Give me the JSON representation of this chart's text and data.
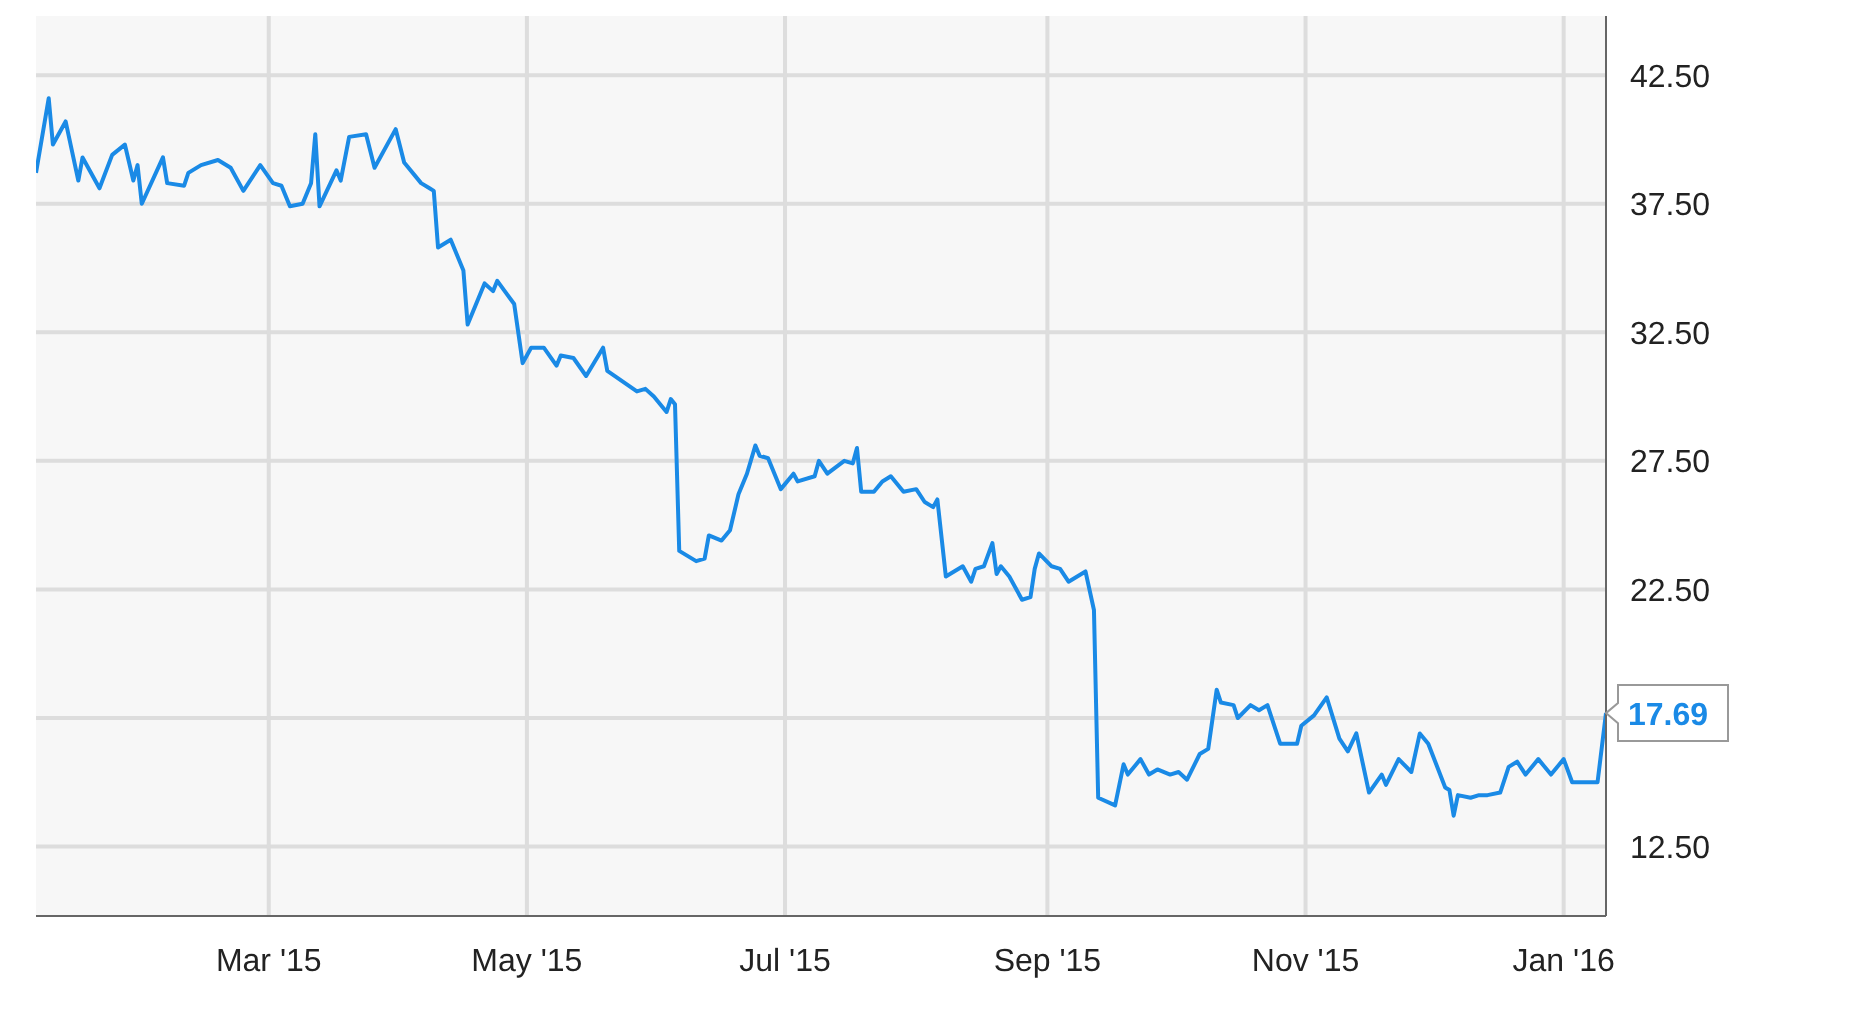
{
  "chart_data": {
    "type": "line",
    "color": "#1a8ae6",
    "grid": true,
    "marker": "none",
    "line_style": "solid",
    "xlim": [
      "2015-01-05",
      "2016-01-11"
    ],
    "xticks": [
      {
        "value": "2015-03-01",
        "label": "Mar '15"
      },
      {
        "value": "2015-05-01",
        "label": "May '15"
      },
      {
        "value": "2015-07-01",
        "label": "Jul '15"
      },
      {
        "value": "2015-09-01",
        "label": "Sep '15"
      },
      {
        "value": "2015-11-01",
        "label": "Nov '15"
      },
      {
        "value": "2016-01-01",
        "label": "Jan '16"
      }
    ],
    "ylim": [
      9.8,
      44.8
    ],
    "yticks": [
      {
        "value": 12.5,
        "label": "12.50"
      },
      {
        "value": 17.5,
        "label": null
      },
      {
        "value": 22.5,
        "label": "22.50"
      },
      {
        "value": 27.5,
        "label": "27.50"
      },
      {
        "value": 32.5,
        "label": "32.50"
      },
      {
        "value": 37.5,
        "label": "37.50"
      },
      {
        "value": 42.5,
        "label": "42.50"
      }
    ],
    "annotations": [
      {
        "text": "17.69",
        "x": "2016-01-11",
        "y": 17.69
      }
    ],
    "x": [
      "2015-01-05",
      "2015-01-08",
      "2015-01-09",
      "2015-01-12",
      "2015-01-15",
      "2015-01-16",
      "2015-01-20",
      "2015-01-23",
      "2015-01-26",
      "2015-01-28",
      "2015-01-29",
      "2015-01-30",
      "2015-02-04",
      "2015-02-05",
      "2015-02-09",
      "2015-02-10",
      "2015-02-13",
      "2015-02-17",
      "2015-02-20",
      "2015-02-23",
      "2015-02-27",
      "2015-03-02",
      "2015-03-04",
      "2015-03-06",
      "2015-03-09",
      "2015-03-11",
      "2015-03-12",
      "2015-03-13",
      "2015-03-17",
      "2015-03-18",
      "2015-03-20",
      "2015-03-24",
      "2015-03-26",
      "2015-03-31",
      "2015-04-02",
      "2015-04-06",
      "2015-04-08",
      "2015-04-09",
      "2015-04-10",
      "2015-04-13",
      "2015-04-16",
      "2015-04-17",
      "2015-04-21",
      "2015-04-23",
      "2015-04-24",
      "2015-04-28",
      "2015-04-30",
      "2015-05-02",
      "2015-05-05",
      "2015-05-08",
      "2015-05-09",
      "2015-05-12",
      "2015-05-15",
      "2015-05-19",
      "2015-05-20",
      "2015-05-27",
      "2015-05-29",
      "2015-05-31",
      "2015-06-03",
      "2015-06-04",
      "2015-06-05",
      "2015-06-06",
      "2015-06-10",
      "2015-06-12",
      "2015-06-13",
      "2015-06-16",
      "2015-06-18",
      "2015-06-20",
      "2015-06-22",
      "2015-06-24",
      "2015-06-25",
      "2015-06-27",
      "2015-06-30",
      "2015-07-03",
      "2015-07-04",
      "2015-07-08",
      "2015-07-09",
      "2015-07-11",
      "2015-07-15",
      "2015-07-17",
      "2015-07-18",
      "2015-07-19",
      "2015-07-22",
      "2015-07-24",
      "2015-07-26",
      "2015-07-29",
      "2015-08-01",
      "2015-08-03",
      "2015-08-05",
      "2015-08-06",
      "2015-08-08",
      "2015-08-12",
      "2015-08-14",
      "2015-08-15",
      "2015-08-17",
      "2015-08-19",
      "2015-08-20",
      "2015-08-21",
      "2015-08-23",
      "2015-08-26",
      "2015-08-28",
      "2015-08-29",
      "2015-08-30",
      "2015-09-02",
      "2015-09-04",
      "2015-09-06",
      "2015-09-10",
      "2015-09-12",
      "2015-09-13",
      "2015-09-17",
      "2015-09-19",
      "2015-09-20",
      "2015-09-23",
      "2015-09-25",
      "2015-09-27",
      "2015-09-30",
      "2015-10-02",
      "2015-10-04",
      "2015-10-07",
      "2015-10-09",
      "2015-10-11",
      "2015-10-12",
      "2015-10-15",
      "2015-10-16",
      "2015-10-19",
      "2015-10-21",
      "2015-10-23",
      "2015-10-26",
      "2015-10-30",
      "2015-10-31",
      "2015-11-03",
      "2015-11-06",
      "2015-11-09",
      "2015-11-11",
      "2015-11-13",
      "2015-11-16",
      "2015-11-19",
      "2015-11-20",
      "2015-11-23",
      "2015-11-26",
      "2015-11-28",
      "2015-11-30",
      "2015-12-04",
      "2015-12-05",
      "2015-12-06",
      "2015-12-07",
      "2015-12-10",
      "2015-12-12",
      "2015-12-14",
      "2015-12-17",
      "2015-12-19",
      "2015-12-21",
      "2015-12-23",
      "2015-12-26",
      "2015-12-29",
      "2016-01-01",
      "2016-01-03",
      "2016-01-09",
      "2016-01-11"
    ],
    "values": [
      38.7,
      41.6,
      39.8,
      40.7,
      38.4,
      39.3,
      38.1,
      39.4,
      39.8,
      38.4,
      39.0,
      37.5,
      39.3,
      38.3,
      38.2,
      38.7,
      39.0,
      39.2,
      38.9,
      38.0,
      39.0,
      38.3,
      38.2,
      37.4,
      37.5,
      38.3,
      40.2,
      37.4,
      38.8,
      38.4,
      40.1,
      40.2,
      38.9,
      40.4,
      39.1,
      38.3,
      38.1,
      38.0,
      35.8,
      36.1,
      34.9,
      32.8,
      34.4,
      34.1,
      34.5,
      33.6,
      31.3,
      31.9,
      31.9,
      31.2,
      31.6,
      31.5,
      30.8,
      31.9,
      31.0,
      30.2,
      30.3,
      30.0,
      29.4,
      29.9,
      29.7,
      24.0,
      23.6,
      23.7,
      24.6,
      24.4,
      24.8,
      26.2,
      27.0,
      28.1,
      27.7,
      27.6,
      26.4,
      27.0,
      26.7,
      26.9,
      27.5,
      27.0,
      27.5,
      27.4,
      28.0,
      26.3,
      26.3,
      26.7,
      26.9,
      26.3,
      26.4,
      25.9,
      25.7,
      26.0,
      23.0,
      23.4,
      22.8,
      23.3,
      23.4,
      24.3,
      23.1,
      23.4,
      23.0,
      22.1,
      22.2,
      23.3,
      23.9,
      23.4,
      23.3,
      22.8,
      23.2,
      21.7,
      14.4,
      14.1,
      15.7,
      15.3,
      15.9,
      15.3,
      15.5,
      15.3,
      15.4,
      15.1,
      16.1,
      16.3,
      18.6,
      18.1,
      18.0,
      17.5,
      18.0,
      17.8,
      18.0,
      16.5,
      16.5,
      17.2,
      17.6,
      18.3,
      16.7,
      16.2,
      16.9,
      14.6,
      15.3,
      14.9,
      15.9,
      15.4,
      16.9,
      16.5,
      14.8,
      14.7,
      13.7,
      14.5,
      14.4,
      14.5,
      14.5,
      14.6,
      15.6,
      15.8,
      15.3,
      15.9,
      15.3,
      15.9,
      15.0,
      15.0,
      17.69
    ]
  }
}
